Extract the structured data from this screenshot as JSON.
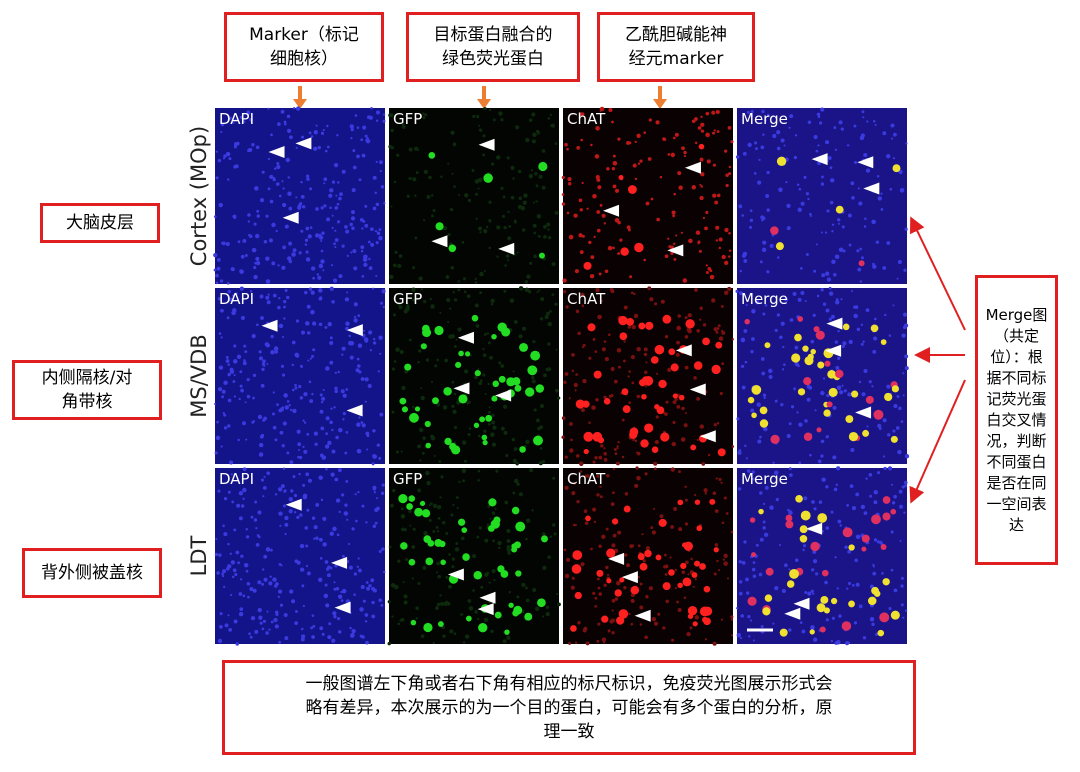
{
  "top_labels": [
    {
      "lines": [
        "Marker（标记",
        "细胞核）"
      ]
    },
    {
      "lines": [
        "目标蛋白融合的",
        "绿色荧光蛋白"
      ]
    },
    {
      "lines": [
        "乙酰胆碱能神",
        "经元marker"
      ]
    }
  ],
  "rows": [
    {
      "label": "Cortex (MOp)",
      "region": {
        "lines": [
          "大脑皮层"
        ]
      },
      "panels": [
        "DAPI",
        "GFP",
        "ChAT",
        "Merge"
      ]
    },
    {
      "label": "MS/VDB",
      "region": {
        "lines": [
          "内侧隔核/对",
          "角带核"
        ]
      },
      "panels": [
        "DAPI",
        "GFP",
        "ChAT",
        "Merge"
      ]
    },
    {
      "label": "LDT",
      "region": {
        "lines": [
          "背外侧被盖核"
        ]
      },
      "panels": [
        "DAPI",
        "GFP",
        "ChAT",
        "Merge"
      ]
    }
  ],
  "merge_note": "Merge图（共定位）：根据不同标记荧光蛋白交叉情况，判断不同蛋白是否在同一空间表达",
  "footer": {
    "lines": [
      "一般图谱左下角或者右下角有相应的标尺标识，免疫荧光图展示形式会",
      "略有差异，本次展示的为一个目的蛋白，可能会有多个蛋白的分析，原",
      "理一致"
    ]
  }
}
